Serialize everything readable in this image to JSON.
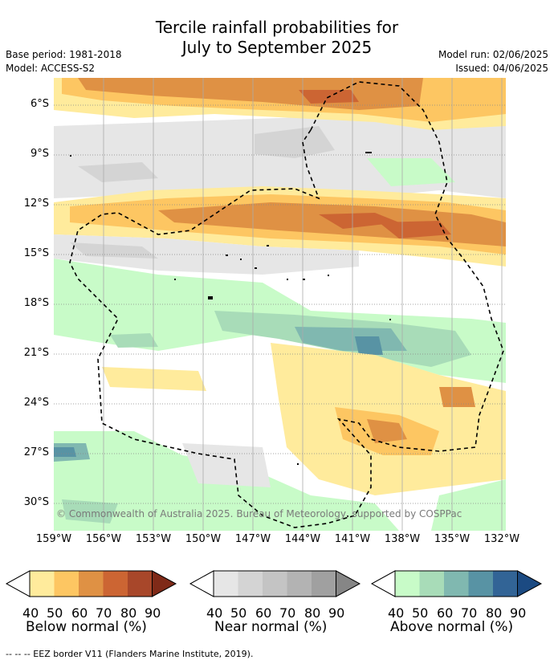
{
  "title": {
    "line1": "Tercile rainfall probabilities for",
    "line2": "July to September 2025"
  },
  "meta": {
    "base_period": "Base period: 1981-2018",
    "model": "Model: ACCESS-S2",
    "model_run": "Model run: 02/06/2025",
    "issued": "Issued: 04/06/2025"
  },
  "latitudes": [
    "6°S",
    "9°S",
    "12°S",
    "15°S",
    "18°S",
    "21°S",
    "24°S",
    "27°S",
    "30°S"
  ],
  "longitudes": [
    "159°W",
    "156°W",
    "153°W",
    "150°W",
    "147°W",
    "144°W",
    "141°W",
    "138°W",
    "135°W",
    "132°W"
  ],
  "copyright": "© Commonwealth of Australia 2025. Bureau of Meteorology, supported by COSPPac",
  "colorbars": [
    {
      "title": "Below normal (%)",
      "ticks": [
        "40",
        "50",
        "60",
        "70",
        "80",
        "90"
      ],
      "colors": [
        "#ffeb9c",
        "#fdc662",
        "#df9144",
        "#cc6533",
        "#a8472a",
        "#7f2a18"
      ]
    },
    {
      "title": "Near normal (%)",
      "ticks": [
        "40",
        "50",
        "60",
        "70",
        "80",
        "90"
      ],
      "colors": [
        "#e6e6e6",
        "#d4d4d4",
        "#c4c4c4",
        "#b3b3b3",
        "#a0a0a0",
        "#868686"
      ]
    },
    {
      "title": "Above normal (%)",
      "ticks": [
        "40",
        "50",
        "60",
        "70",
        "80",
        "90"
      ],
      "colors": [
        "#c8fbc8",
        "#a8dcb8",
        "#80b8b0",
        "#5893a4",
        "#326496",
        "#1b4a82"
      ]
    }
  ],
  "footer": "--  --  -- EEZ border V11 (Flanders Marine Institute, 2019)."
}
